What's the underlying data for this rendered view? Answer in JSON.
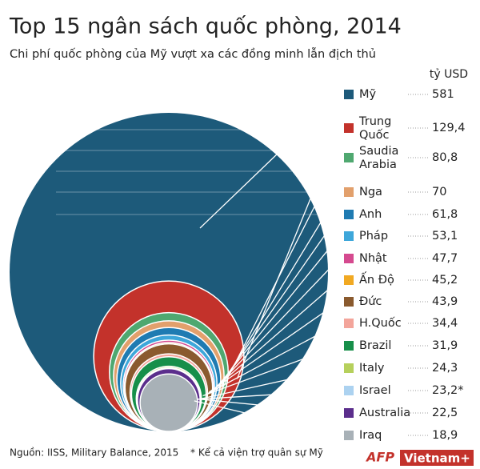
{
  "chart_data": {
    "type": "circles",
    "title": "Top 15 ngân sách quốc phòng, 2014",
    "subtitle": "Chi phí quốc phòng của Mỹ vượt xa các đồng minh lẫn địch thủ",
    "unit": "tỷ USD",
    "categories": [
      "Mỹ",
      "Trung Quốc",
      "Saudia Arabia",
      "Nga",
      "Anh",
      "Pháp",
      "Nhật",
      "Ấn Độ",
      "Đức",
      "H.Quốc",
      "Brazil",
      "Italy",
      "Israel",
      "Australia",
      "Iraq"
    ],
    "values": [
      581,
      129.4,
      80.8,
      70,
      61.8,
      53.1,
      47.7,
      45.2,
      43.9,
      34.4,
      31.9,
      24.3,
      23.2,
      22.5,
      18.9
    ],
    "value_labels": [
      "581",
      "129,4",
      "80,8",
      "70",
      "61,8",
      "53,1",
      "47,7",
      "45,2",
      "43,9",
      "34,4",
      "31,9",
      "24,3",
      "23,2*",
      "22,5",
      "18,9"
    ],
    "colors": [
      "#1d5a7a",
      "#c3322b",
      "#4fa870",
      "#e2a06c",
      "#1f7bb2",
      "#3ea7da",
      "#d54a8f",
      "#f1a922",
      "#8a5a2e",
      "#f3a59b",
      "#178f4a",
      "#b6d05c",
      "#acd2f0",
      "#5b2e8c",
      "#a8b1b7"
    ],
    "source": "Nguồn: IISS, Military Balance, 2015",
    "note": "* Kể cả viện trợ quân sự Mỹ",
    "logo_1": "AFP",
    "logo_2": "Vietnam+"
  }
}
